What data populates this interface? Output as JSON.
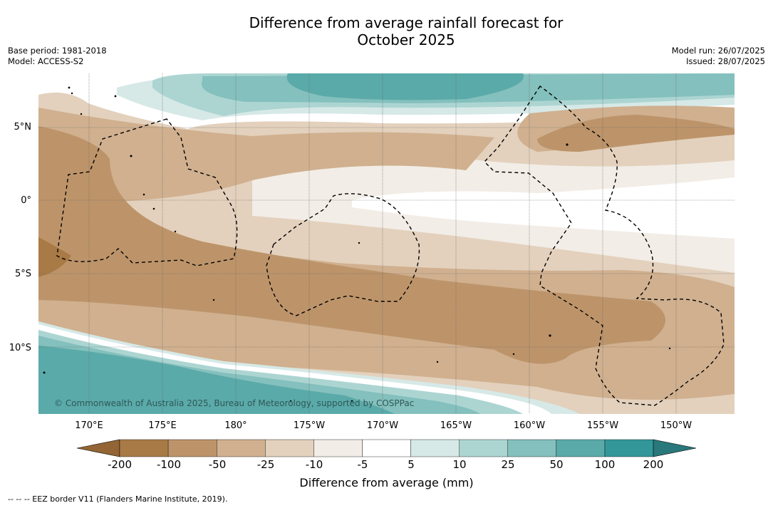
{
  "header": {
    "title_line1": "Difference from average rainfall forecast for",
    "title_line2": "October 2025",
    "base_period": "Base period: 1981-2018",
    "model": "Model: ACCESS-S2",
    "model_run": "Model run: 26/07/2025",
    "issued": "Issued: 28/07/2025"
  },
  "map": {
    "copyright": "© Commonwealth of Australia 2025, Bureau of Meteorology, supported by COSPPac",
    "lat_labels": [
      "5°N",
      "0°",
      "5°S",
      "10°S"
    ],
    "lon_labels": [
      "170°E",
      "175°E",
      "180°",
      "175°W",
      "170°W",
      "165°W",
      "160°W",
      "155°W",
      "150°W"
    ]
  },
  "colorbar": {
    "ticks": [
      "-200",
      "-100",
      "-50",
      "-25",
      "-10",
      "-5",
      "5",
      "10",
      "25",
      "50",
      "100",
      "200"
    ],
    "colors": [
      "#a87a45",
      "#bd946a",
      "#d0b08f",
      "#e3d1bd",
      "#f2ede6",
      "#ffffff",
      "#d6e9e7",
      "#acd5d2",
      "#84c0bd",
      "#5aaaa9",
      "#33979a"
    ],
    "under_color": "#946534",
    "over_color": "#29787b",
    "label": "Difference from average (mm)"
  },
  "footer": {
    "legend": "--  --  -- EEZ border V11 (Flanders Marine Institute, 2019)."
  }
}
